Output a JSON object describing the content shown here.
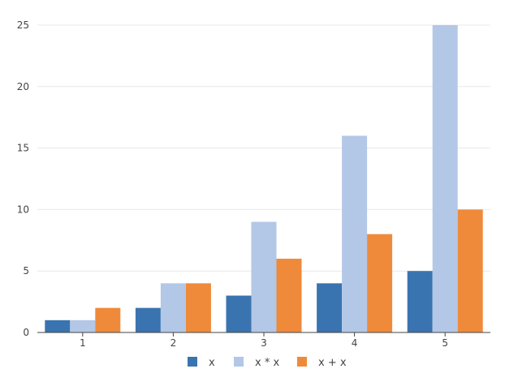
{
  "chart_data": {
    "type": "bar",
    "title": "",
    "xlabel": "",
    "ylabel": "",
    "categories": [
      "1",
      "2",
      "3",
      "4",
      "5"
    ],
    "series": [
      {
        "name": "x",
        "values": [
          1,
          2,
          3,
          4,
          5
        ],
        "color": "#3a74b0"
      },
      {
        "name": "x * x",
        "values": [
          1,
          4,
          9,
          16,
          25
        ],
        "color": "#b3c7e6"
      },
      {
        "name": "x + x",
        "values": [
          2,
          4,
          6,
          8,
          10
        ],
        "color": "#ef8a3a"
      }
    ],
    "ylim": [
      0,
      25
    ],
    "yticks": [
      0,
      5,
      10,
      15,
      20,
      25
    ],
    "grid": true,
    "legend_position": "bottom-center"
  }
}
